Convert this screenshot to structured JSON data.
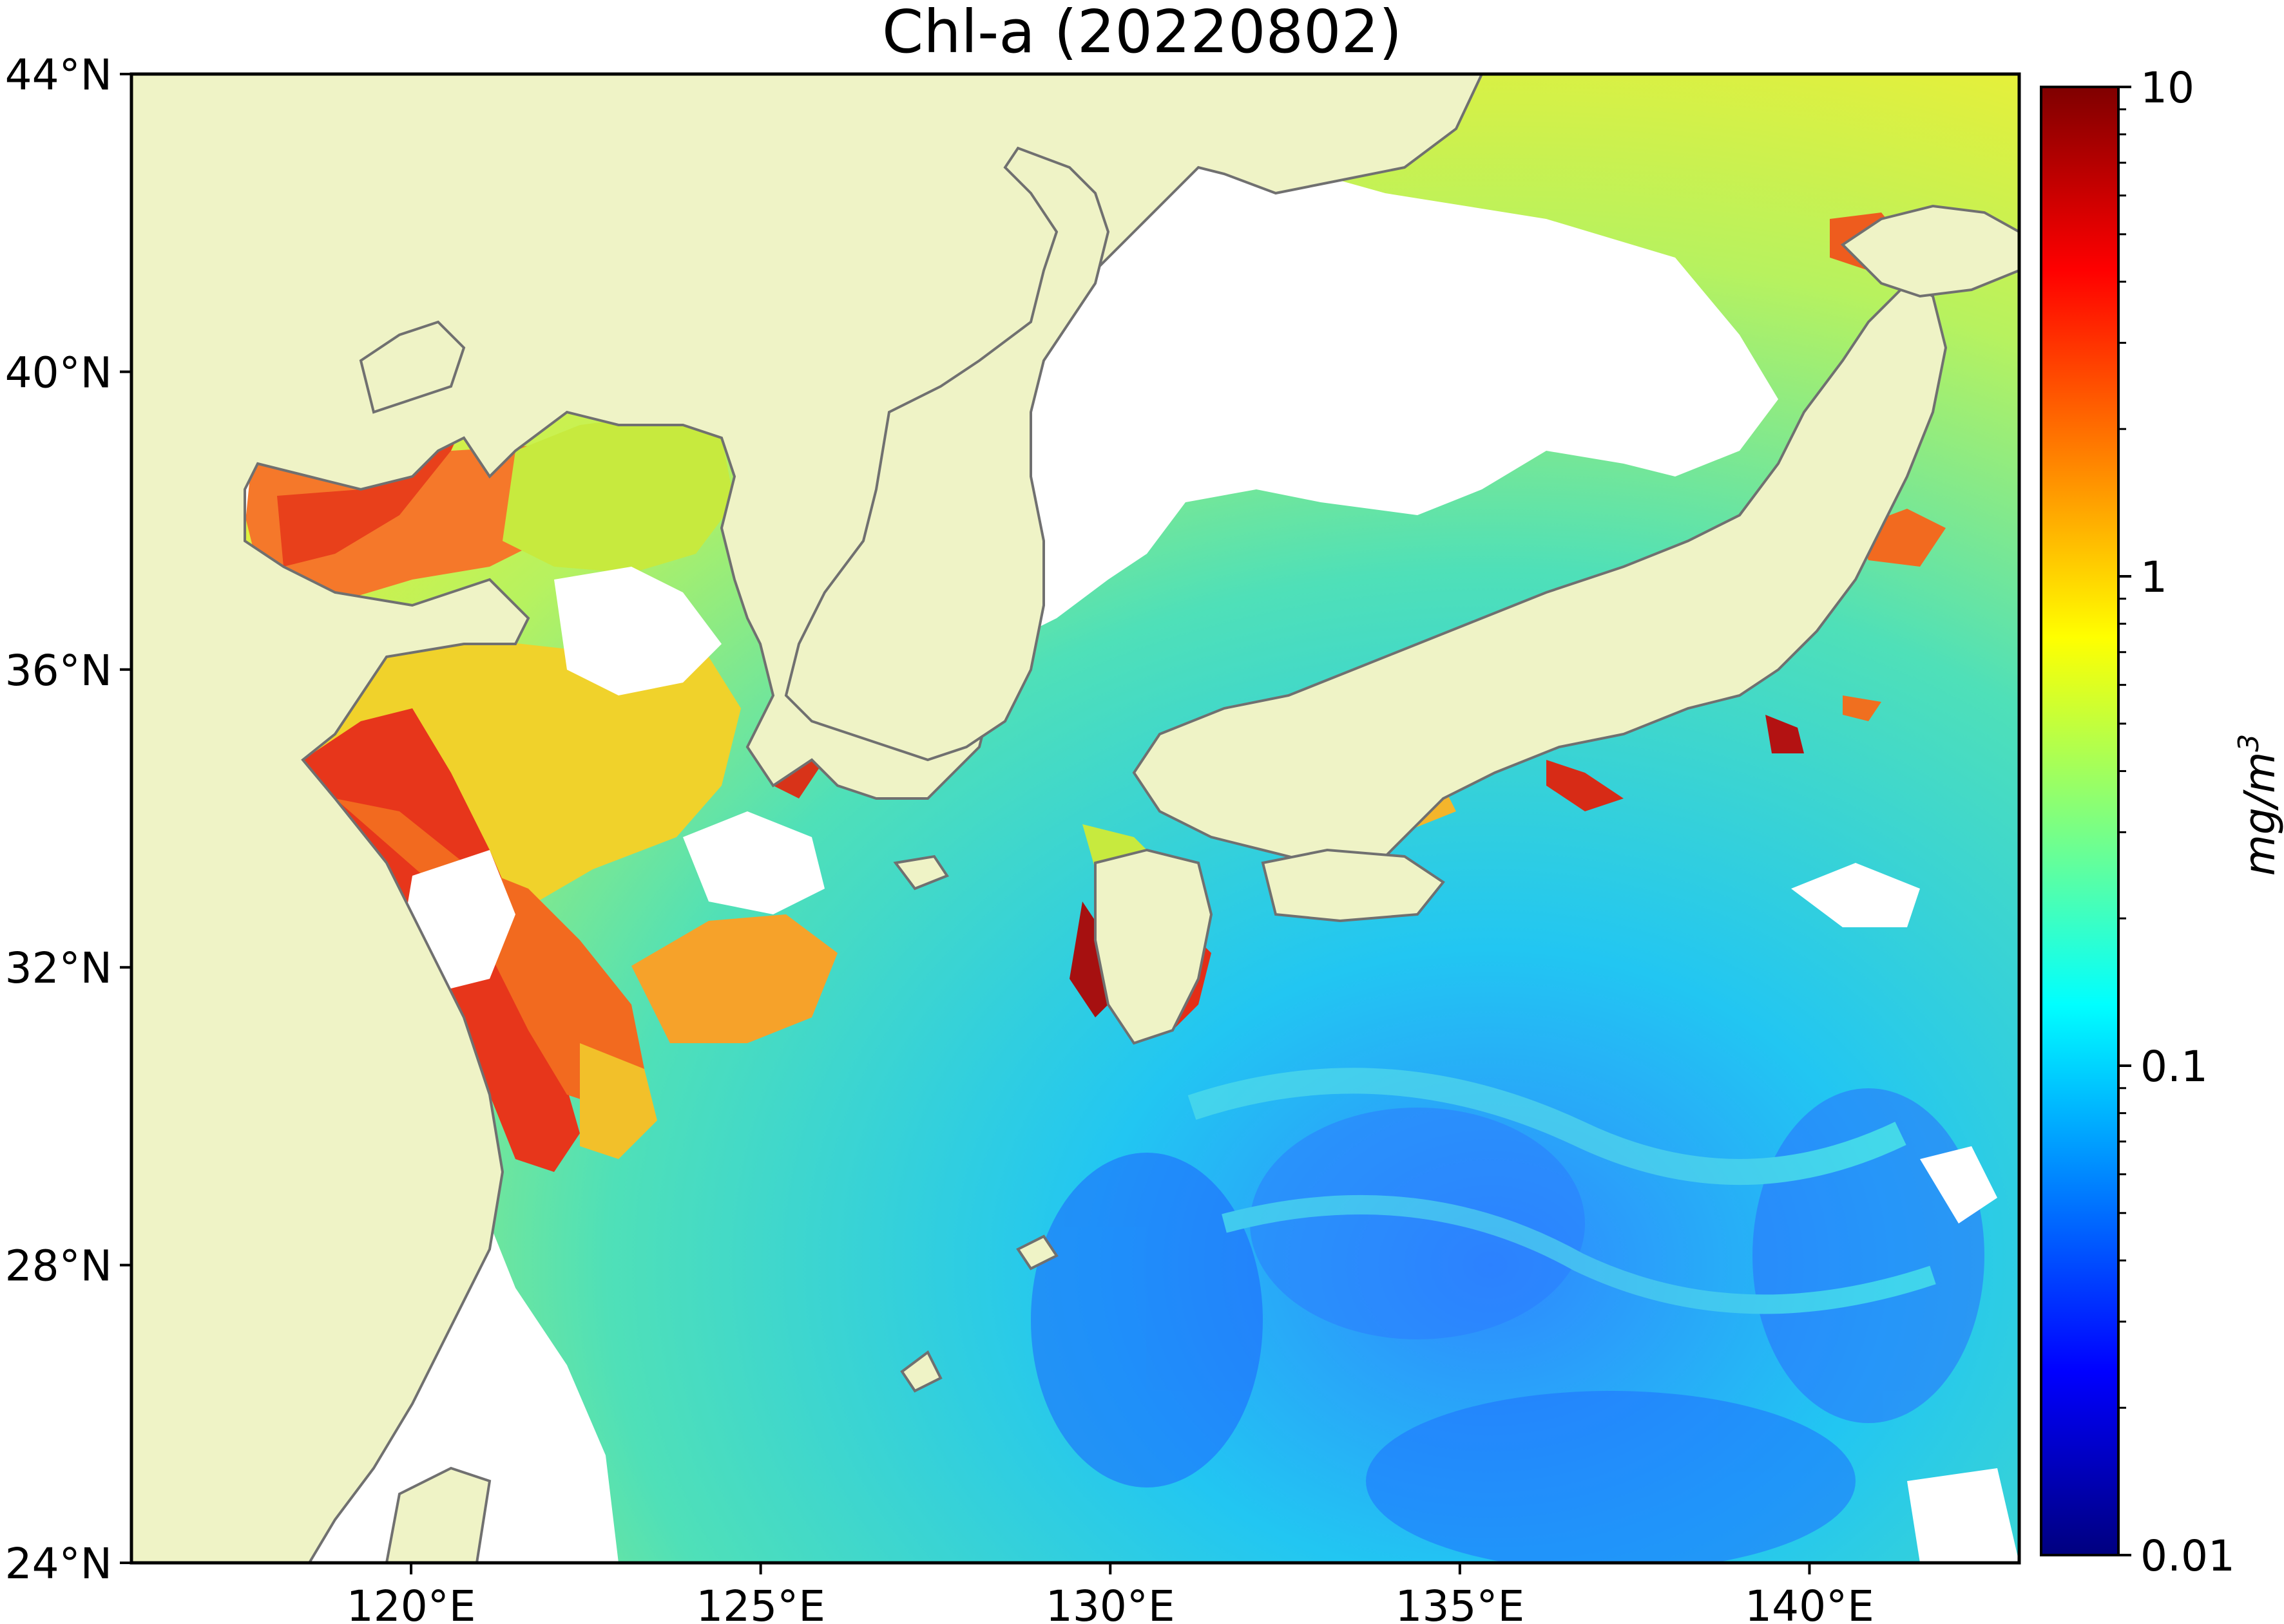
{
  "title": "Chl-a (20220802)",
  "map": {
    "lon_range": [
      116.0,
      143.0
    ],
    "lat_range": [
      24.0,
      44.0
    ],
    "land_color": "#eff3c6",
    "coast_color": "#707070",
    "nodata_color": "#ffffff",
    "lat_ticks": [
      {
        "value": 44,
        "label": "44°N"
      },
      {
        "value": 40,
        "label": "40°N"
      },
      {
        "value": 36,
        "label": "36°N"
      },
      {
        "value": 32,
        "label": "32°N"
      },
      {
        "value": 28,
        "label": "28°N"
      },
      {
        "value": 24,
        "label": "24°N"
      }
    ],
    "lon_ticks": [
      {
        "value": 120,
        "label": "120°E"
      },
      {
        "value": 125,
        "label": "125°E"
      },
      {
        "value": 130,
        "label": "130°E"
      },
      {
        "value": 135,
        "label": "135°E"
      },
      {
        "value": 140,
        "label": "140°E"
      }
    ]
  },
  "colorbar": {
    "colormap": "jet",
    "scale": "log",
    "range": [
      0.01,
      10
    ],
    "unit_base": "mg/m",
    "unit_exp": "3",
    "ticks": [
      {
        "value": 10,
        "label": "10"
      },
      {
        "value": 1,
        "label": "1"
      },
      {
        "value": 0.1,
        "label": "0.1"
      },
      {
        "value": 0.01,
        "label": "0.01"
      }
    ],
    "stops": [
      "#00007f",
      "#0000ff",
      "#007fff",
      "#00ffff",
      "#7fff7f",
      "#ffff00",
      "#ff7f00",
      "#ff0000",
      "#7f0000"
    ]
  }
}
